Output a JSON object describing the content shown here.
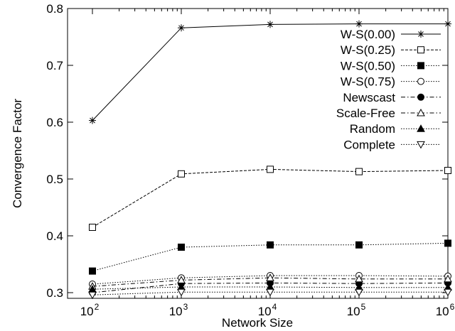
{
  "chart_data": {
    "type": "line",
    "title": "",
    "xlabel": "Network Size",
    "ylabel": "Convergence Factor",
    "xscale": "log",
    "x": [
      100,
      1000,
      10000,
      100000,
      1000000
    ],
    "x_tick_labels": [
      {
        "base": "10",
        "exp": "2"
      },
      {
        "base": "10",
        "exp": "3"
      },
      {
        "base": "10",
        "exp": "4"
      },
      {
        "base": "10",
        "exp": "5"
      },
      {
        "base": "10",
        "exp": "6"
      }
    ],
    "xlim": [
      100,
      1000000
    ],
    "ylim": [
      0.29,
      0.8
    ],
    "y_ticks": [
      0.3,
      0.4,
      0.5,
      0.6,
      0.7,
      0.8
    ],
    "y_tick_labels": [
      "0.3",
      "0.4",
      "0.5",
      "0.6",
      "0.7",
      "0.8"
    ],
    "grid": false,
    "legend_position": "top-right",
    "series": [
      {
        "name": "W-S(0.00)",
        "marker": "asterisk",
        "dash": "solid",
        "values": [
          0.603,
          0.766,
          0.772,
          0.773,
          0.773
        ]
      },
      {
        "name": "W-S(0.25)",
        "marker": "open-square",
        "dash": "dashed",
        "values": [
          0.415,
          0.509,
          0.517,
          0.513,
          0.515
        ]
      },
      {
        "name": "W-S(0.50)",
        "marker": "filled-square",
        "dash": "dotted",
        "values": [
          0.338,
          0.38,
          0.384,
          0.384,
          0.387
        ]
      },
      {
        "name": "W-S(0.75)",
        "marker": "open-circle",
        "dash": "dotted",
        "values": [
          0.315,
          0.326,
          0.33,
          0.33,
          0.329
        ]
      },
      {
        "name": "Newscast",
        "marker": "filled-circle",
        "dash": "dash-dot",
        "values": [
          0.3,
          0.316,
          0.317,
          0.316,
          0.317
        ]
      },
      {
        "name": "Scale-Free",
        "marker": "open-triangle-up",
        "dash": "dash-dot",
        "values": [
          0.311,
          0.322,
          0.326,
          0.324,
          0.324
        ]
      },
      {
        "name": "Random",
        "marker": "filled-triangle-up",
        "dash": "dotted",
        "values": [
          0.306,
          0.31,
          0.31,
          0.309,
          0.309
        ]
      },
      {
        "name": "Complete",
        "marker": "open-triangle-down",
        "dash": "dotted",
        "values": [
          0.296,
          0.301,
          0.301,
          0.301,
          0.301
        ]
      }
    ]
  }
}
